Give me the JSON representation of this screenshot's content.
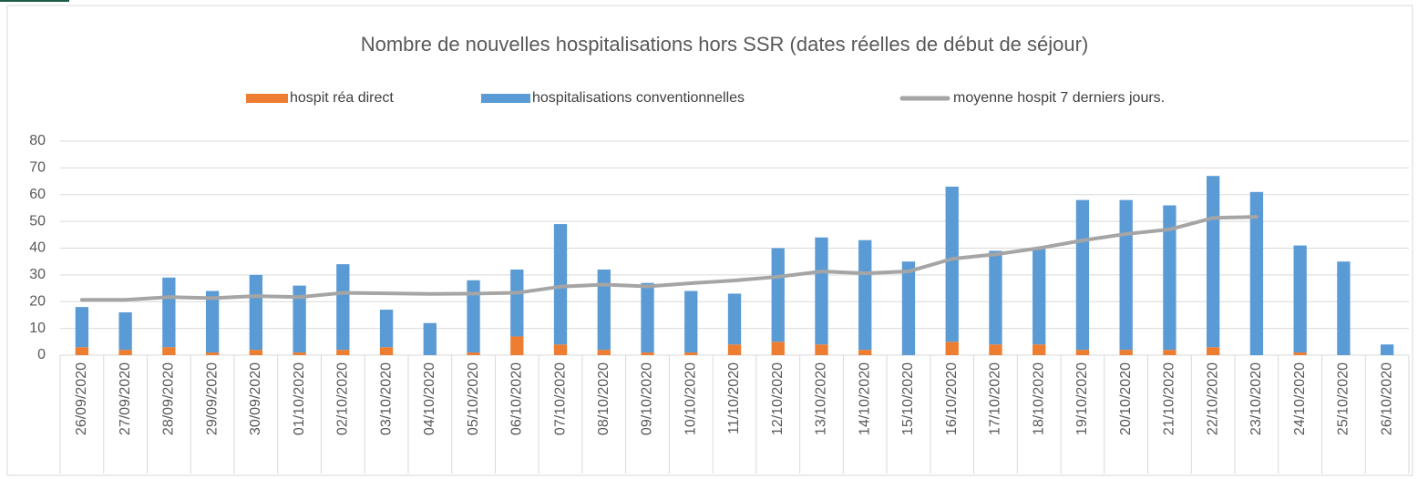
{
  "chart_data": {
    "type": "bar",
    "stacked": true,
    "title": "Nombre de nouvelles hospitalisations hors SSR (dates réelles de début de séjour)",
    "categories": [
      "26/09/2020",
      "27/09/2020",
      "28/09/2020",
      "29/09/2020",
      "30/09/2020",
      "01/10/2020",
      "02/10/2020",
      "03/10/2020",
      "04/10/2020",
      "05/10/2020",
      "06/10/2020",
      "07/10/2020",
      "08/10/2020",
      "09/10/2020",
      "10/10/2020",
      "11/10/2020",
      "12/10/2020",
      "13/10/2020",
      "14/10/2020",
      "15/10/2020",
      "16/10/2020",
      "17/10/2020",
      "18/10/2020",
      "19/10/2020",
      "20/10/2020",
      "21/10/2020",
      "22/10/2020",
      "23/10/2020",
      "24/10/2020",
      "25/10/2020",
      "26/10/2020"
    ],
    "series": [
      {
        "name": "hospit réa direct",
        "color": "#ed7d31",
        "type": "bar",
        "values": [
          3,
          2,
          3,
          1,
          2,
          1,
          2,
          3,
          0,
          1,
          7,
          4,
          2,
          1,
          1,
          4,
          5,
          4,
          2,
          0,
          5,
          4,
          4,
          2,
          2,
          2,
          3,
          0,
          1,
          0,
          0
        ]
      },
      {
        "name": "hospitalisations conventionnelles",
        "color": "#5b9bd5",
        "type": "bar",
        "values": [
          15,
          14,
          26,
          23,
          28,
          25,
          32,
          14,
          12,
          27,
          25,
          45,
          30,
          26,
          23,
          19,
          35,
          40,
          41,
          35,
          58,
          35,
          36,
          56,
          56,
          54,
          64,
          61,
          40,
          35,
          4
        ]
      },
      {
        "name": "moyenne hospit 7 derniers jours.",
        "color": "#a5a5a5",
        "type": "line",
        "values": [
          20.7,
          20.7,
          21.7,
          21.3,
          22.1,
          21.7,
          23.3,
          23.1,
          22.9,
          23.0,
          23.3,
          25.6,
          26.4,
          25.7,
          26.9,
          27.9,
          29.3,
          31.3,
          30.6,
          31.3,
          36.0,
          37.7,
          40.0,
          42.9,
          45.3,
          47.0,
          51.3,
          51.7,
          null,
          null,
          null
        ]
      }
    ],
    "ylim": [
      0,
      80
    ],
    "yticks": [
      0,
      10,
      20,
      30,
      40,
      50,
      60,
      70,
      80
    ],
    "grid": true,
    "legend": "top"
  }
}
